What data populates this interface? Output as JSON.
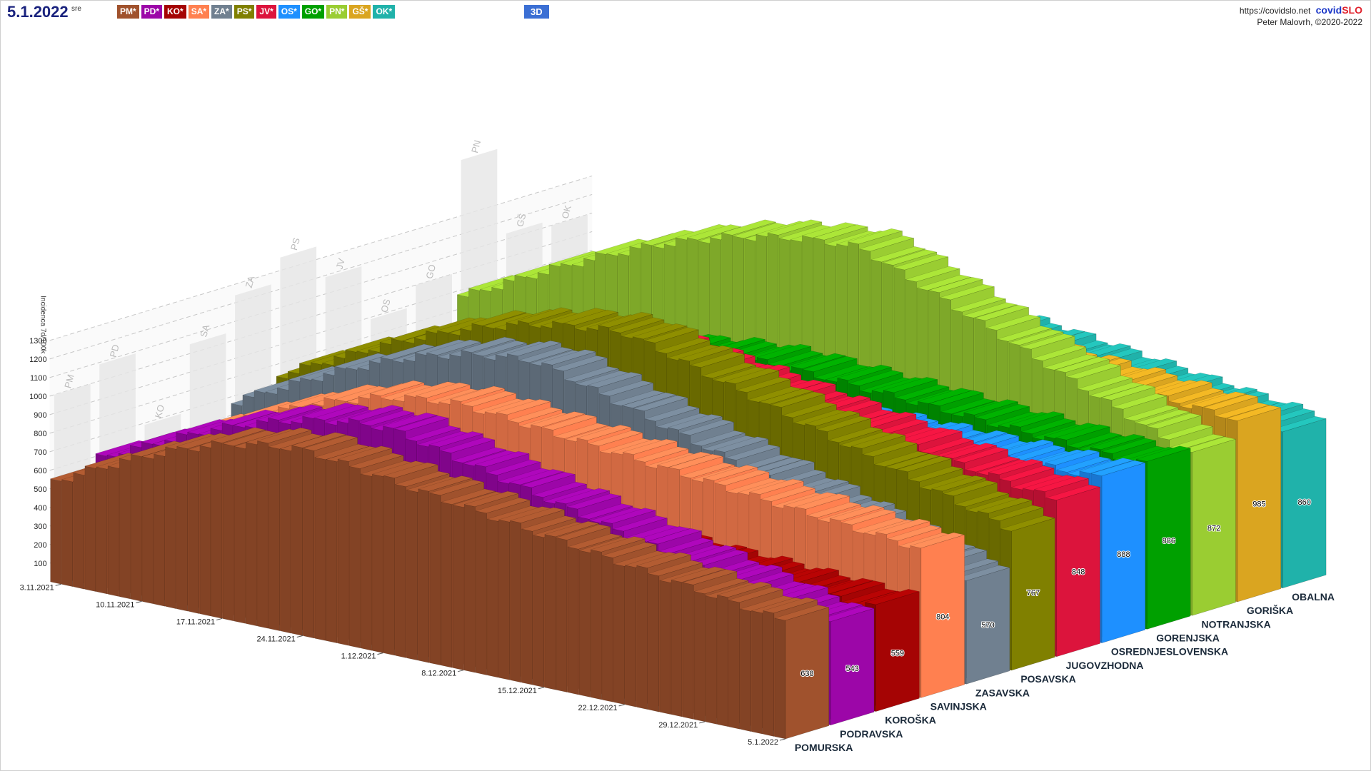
{
  "header": {
    "date": "5.1.2022",
    "weekday": "sre",
    "button_3d": "3D",
    "site_url": "https://covidslo.net",
    "brand_part1": "covid",
    "brand_part2": "SLO",
    "author": "Peter Malovrh, ©2020-2022"
  },
  "region_buttons": [
    {
      "label": "PM*",
      "color": "#A0522D"
    },
    {
      "label": "PD*",
      "color": "#9C06A8"
    },
    {
      "label": "KO*",
      "color": "#A50404"
    },
    {
      "label": "SA*",
      "color": "#FF8050"
    },
    {
      "label": "ZA*",
      "color": "#708090"
    },
    {
      "label": "PS*",
      "color": "#808000"
    },
    {
      "label": "JV*",
      "color": "#DC143C"
    },
    {
      "label": "OS*",
      "color": "#1E90FF"
    },
    {
      "label": "GO*",
      "color": "#00A000"
    },
    {
      "label": "PN*",
      "color": "#9ACD32"
    },
    {
      "label": "GŠ*",
      "color": "#DAA520"
    },
    {
      "label": "OK*",
      "color": "#20B2AA"
    }
  ],
  "chart_data": {
    "type": "bar",
    "variant": "3d-stacked-rows",
    "ylabel": "Incidenca 7d/100k",
    "ylim": [
      0,
      1300
    ],
    "yticks": [
      100,
      200,
      300,
      400,
      500,
      600,
      700,
      800,
      900,
      1000,
      1100,
      1200,
      1300
    ],
    "x_ticks": [
      "3.11.2021",
      "10.11.2021",
      "17.11.2021",
      "24.11.2021",
      "1.12.2021",
      "8.12.2021",
      "15.12.2021",
      "22.12.2021",
      "29.12.2021",
      "5.1.2022"
    ],
    "grid": true,
    "series": [
      {
        "name": "POMURSKA",
        "code": "PM",
        "color": "#A0522D",
        "last": 638,
        "peak": 1000
      },
      {
        "name": "PODRAVSKA",
        "code": "PD",
        "color": "#9C06A8",
        "last": 543,
        "peak": 1090
      },
      {
        "name": "KOROŠKA",
        "code": "KO",
        "color": "#A50404",
        "last": 559,
        "peak": 690
      },
      {
        "name": "SAVINJSKA",
        "code": "SA",
        "color": "#FF8050",
        "last": 804,
        "peak": 1050
      },
      {
        "name": "ZASAVSKA",
        "code": "ZA",
        "color": "#708090",
        "last": 570,
        "peak": 1240
      },
      {
        "name": "POSAVSKA",
        "code": "PS",
        "color": "#808000",
        "last": 767,
        "peak": 1370
      },
      {
        "name": "JUGOVZHODNA",
        "code": "JV",
        "color": "#DC143C",
        "last": 848,
        "peak": 1190
      },
      {
        "name": "OSREDNJESLOVENSKA",
        "code": "OS",
        "color": "#1E90FF",
        "last": 888,
        "peak": 890
      },
      {
        "name": "GORENJSKA",
        "code": "GO",
        "color": "#00A000",
        "last": 886,
        "peak": 1000
      },
      {
        "name": "NOTRANJSKA",
        "code": "PN",
        "color": "#9ACD32",
        "last": 872,
        "peak": 1600
      },
      {
        "name": "GORIŠKA",
        "code": "GŠ",
        "color": "#DAA520",
        "last": 985,
        "peak": 1130
      },
      {
        "name": "OBALNA",
        "code": "OK",
        "color": "#20B2AA",
        "last": 860,
        "peak": 1100
      }
    ]
  }
}
